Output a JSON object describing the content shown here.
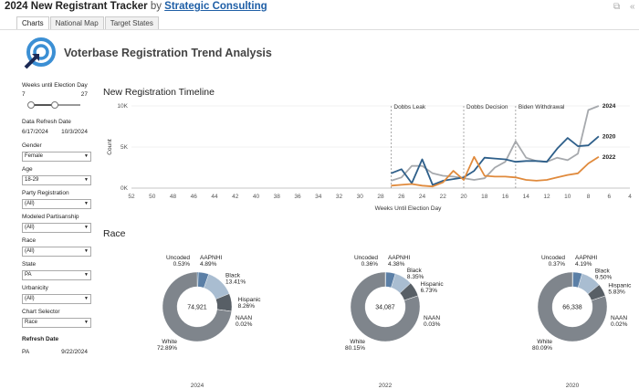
{
  "header": {
    "title": "2024 New Registrant Tracker",
    "by": "by",
    "org_link": "Strategic Consulting"
  },
  "tabs": [
    {
      "label": "Charts",
      "active": true
    },
    {
      "label": "National Map",
      "active": false
    },
    {
      "label": "Target States",
      "active": false
    }
  ],
  "dashboard_title": "Voterbase Registration Trend Analysis",
  "sidebar": {
    "weeks_label": "Weeks until Election Day",
    "weeks_min": "7",
    "weeks_max": "27",
    "refresh_label": "Data Refresh Date",
    "refresh_start": "6/17/2024",
    "refresh_end": "10/3/2024",
    "filters": [
      {
        "label": "Gender",
        "value": "Female"
      },
      {
        "label": "Age",
        "value": "18-29"
      },
      {
        "label": "Party Registration",
        "value": "(All)"
      },
      {
        "label": "Modeled Partisanship",
        "value": "(All)"
      },
      {
        "label": "Race",
        "value": "(All)"
      },
      {
        "label": "State",
        "value": "PA"
      },
      {
        "label": "Urbanicity",
        "value": "(All)"
      },
      {
        "label": "Chart Selector",
        "value": "Race"
      }
    ],
    "refresh_date_title": "Refresh Date",
    "refresh_state": "PA",
    "refresh_date": "9/22/2024"
  },
  "timeline_title": "New Registration Timeline",
  "race_title": "Race",
  "chart_data": [
    {
      "type": "line",
      "title": "New Registration Timeline",
      "xlabel": "Weeks Until Election Day",
      "ylabel": "Count",
      "xlim": [
        52,
        4
      ],
      "ylim": [
        0,
        10000
      ],
      "x_ticks": [
        52,
        50,
        48,
        46,
        44,
        42,
        40,
        38,
        36,
        34,
        32,
        30,
        28,
        26,
        24,
        22,
        20,
        18,
        16,
        14,
        12,
        10,
        8,
        6,
        4
      ],
      "y_ticks": [
        {
          "value": 0,
          "label": "0K"
        },
        {
          "value": 5000,
          "label": "5K"
        },
        {
          "value": 10000,
          "label": "10K"
        }
      ],
      "grid": true,
      "annotations": [
        {
          "x": 27,
          "label": "Dobbs Leak"
        },
        {
          "x": 20,
          "label": "Dobbs Decision"
        },
        {
          "x": 15,
          "label": "Biden Withdrawal"
        }
      ],
      "series": [
        {
          "name": "2024",
          "color": "#a6a9ad",
          "x": [
            27,
            26,
            25,
            24,
            23,
            22,
            21,
            20,
            19,
            18,
            17,
            16,
            15,
            14,
            13,
            12,
            11,
            10,
            9,
            8,
            7
          ],
          "y": [
            900,
            1300,
            2700,
            2700,
            1800,
            1500,
            1400,
            1200,
            1000,
            1200,
            2500,
            3200,
            5700,
            3700,
            3300,
            3200,
            3700,
            3400,
            4200,
            9500,
            10000
          ]
        },
        {
          "name": "2020",
          "color": "#2e5f8a",
          "x": [
            27,
            26,
            25,
            24,
            23,
            22,
            21,
            20,
            19,
            18,
            17,
            16,
            15,
            14,
            13,
            12,
            11,
            10,
            9,
            8,
            7
          ],
          "y": [
            1800,
            2300,
            600,
            3500,
            400,
            900,
            1100,
            1300,
            2100,
            3700,
            3600,
            3500,
            3200,
            3300,
            3300,
            3200,
            4800,
            6100,
            5100,
            5200,
            6300
          ]
        },
        {
          "name": "2022",
          "color": "#e08a3c",
          "x": [
            27,
            26,
            25,
            24,
            23,
            22,
            21,
            20,
            19,
            18,
            17,
            16,
            15,
            14,
            13,
            12,
            11,
            10,
            9,
            8,
            7
          ],
          "y": [
            300,
            400,
            500,
            300,
            200,
            700,
            2100,
            1000,
            3800,
            1500,
            1400,
            1400,
            1300,
            1000,
            900,
            1000,
            1300,
            1600,
            1800,
            3000,
            3800
          ]
        }
      ]
    },
    {
      "type": "pie",
      "year": "2024",
      "total": "74,921",
      "slices": [
        {
          "name": "Uncoded",
          "value": 0.53,
          "label": "0.53%",
          "color": "#2e5f8a"
        },
        {
          "name": "AAPNHI",
          "value": 4.89,
          "label": "4.89%",
          "color": "#5b7fa6"
        },
        {
          "name": "Black",
          "value": 13.41,
          "label": "13.41%",
          "color": "#a9bdd1"
        },
        {
          "name": "Hispanic",
          "value": 8.26,
          "label": "8.26%",
          "color": "#585f66"
        },
        {
          "name": "NAAN",
          "value": 0.02,
          "label": "0.02%",
          "color": "#41464c"
        },
        {
          "name": "White",
          "value": 72.89,
          "label": "72.89%",
          "color": "#7f858c"
        }
      ]
    },
    {
      "type": "pie",
      "year": "2022",
      "total": "34,087",
      "slices": [
        {
          "name": "Uncoded",
          "value": 0.36,
          "label": "0.36%",
          "color": "#2e5f8a"
        },
        {
          "name": "AAPNHI",
          "value": 4.38,
          "label": "4.38%",
          "color": "#5b7fa6"
        },
        {
          "name": "Black",
          "value": 8.35,
          "label": "8.35%",
          "color": "#a9bdd1"
        },
        {
          "name": "Hispanic",
          "value": 6.73,
          "label": "6.73%",
          "color": "#585f66"
        },
        {
          "name": "NAAN",
          "value": 0.03,
          "label": "0.03%",
          "color": "#41464c"
        },
        {
          "name": "White",
          "value": 80.15,
          "label": "80.15%",
          "color": "#7f858c"
        }
      ]
    },
    {
      "type": "pie",
      "year": "2020",
      "total": "66,338",
      "slices": [
        {
          "name": "Uncoded",
          "value": 0.37,
          "label": "0.37%",
          "color": "#2e5f8a"
        },
        {
          "name": "AAPNHI",
          "value": 4.19,
          "label": "4.19%",
          "color": "#5b7fa6"
        },
        {
          "name": "Black",
          "value": 9.5,
          "label": "9.50%",
          "color": "#a9bdd1"
        },
        {
          "name": "Hispanic",
          "value": 5.83,
          "label": "5.83%",
          "color": "#585f66"
        },
        {
          "name": "NAAN",
          "value": 0.02,
          "label": "0.02%",
          "color": "#41464c"
        },
        {
          "name": "White",
          "value": 80.09,
          "label": "80.09%",
          "color": "#7f858c"
        }
      ]
    }
  ]
}
